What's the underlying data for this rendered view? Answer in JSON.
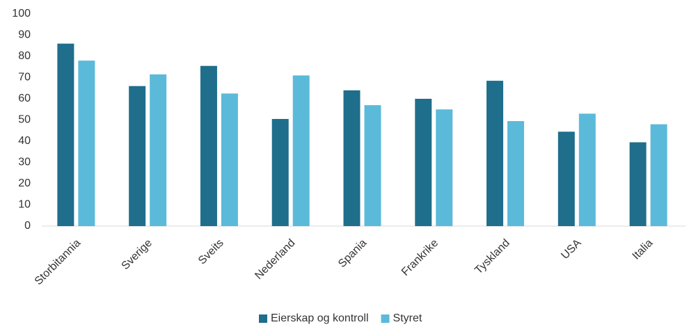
{
  "chart_data": {
    "type": "bar",
    "categories": [
      "Storbitannia",
      "Sverige",
      "Sveits",
      "Nederland",
      "Spania",
      "Frankrike",
      "Tyskland",
      "USA",
      "Italia"
    ],
    "series": [
      {
        "name": "Eierskap og kontroll",
        "color": "#1f6e8c",
        "values": [
          86,
          66,
          75.5,
          50.5,
          64,
          60,
          68.5,
          44.5,
          39.5
        ]
      },
      {
        "name": "Styret",
        "color": "#5bbad9",
        "values": [
          78,
          71.5,
          62.5,
          71,
          57,
          55,
          49.5,
          53,
          48
        ]
      }
    ],
    "ylim": [
      0,
      100
    ],
    "yticks": [
      0,
      10,
      20,
      30,
      40,
      50,
      60,
      70,
      80,
      90,
      100
    ],
    "legend": "bottom"
  }
}
